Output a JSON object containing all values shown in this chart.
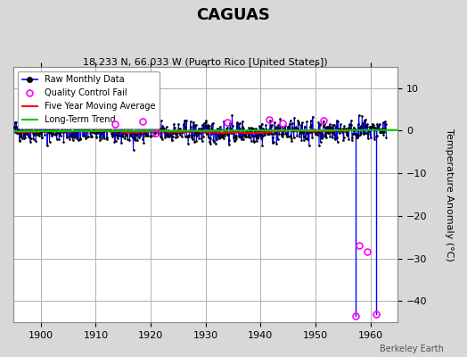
{
  "title": "CAGUAS",
  "subtitle": "18.233 N, 66.033 W (Puerto Rico [United States])",
  "watermark": "Berkeley Earth",
  "ylabel": "Temperature Anomaly (°C)",
  "xlim": [
    1895,
    1965
  ],
  "ylim": [
    -45,
    15
  ],
  "yticks": [
    -40,
    -30,
    -20,
    -10,
    0,
    10
  ],
  "xticks": [
    1900,
    1910,
    1920,
    1930,
    1940,
    1950,
    1960
  ],
  "bg_color": "#d8d8d8",
  "plot_bg_color": "#ffffff",
  "grid_color": "#b0b0b0",
  "raw_line_color": "#0000ff",
  "raw_dot_color": "#000000",
  "ma_color": "#ff0000",
  "trend_color": "#00cc00",
  "qc_fail_color": "#ff00ff",
  "spike1_year": 1957.25,
  "spike2_year": 1961.0,
  "spike1_val": -43.5,
  "spike2_val": -43.0,
  "qc_mid1_x": 1958.0,
  "qc_mid1_y": -27.0,
  "qc_mid2_x": 1959.5,
  "qc_mid2_y": -28.5,
  "seed": 42,
  "noise_std": 1.3,
  "years_start": 1895,
  "years_end": 1963
}
